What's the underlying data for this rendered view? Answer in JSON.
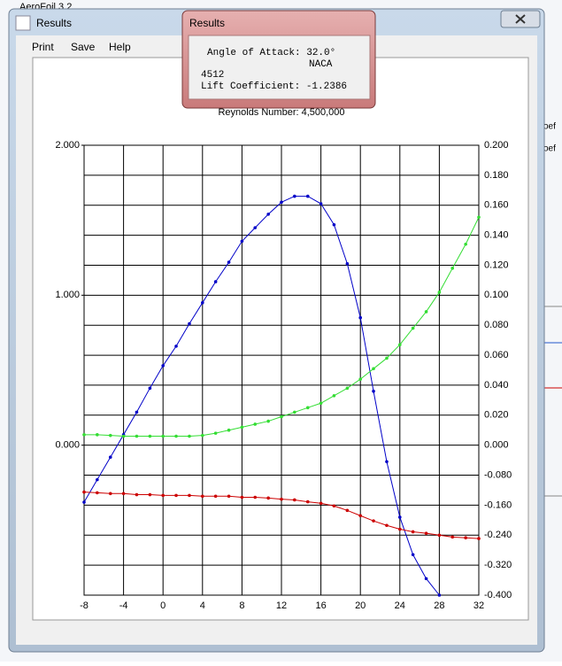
{
  "background_window": {
    "title": "AeroFoil 3.2",
    "fragments": [
      "oef",
      "oef"
    ]
  },
  "window": {
    "title": "Results",
    "menu": [
      "Print",
      "Save",
      "Help"
    ]
  },
  "popup": {
    "title": "Results",
    "lines": [
      "Angle of Attack: 32.0°",
      "NACA",
      "4512",
      "Lift Coefficient: -1.2386"
    ]
  },
  "chart_data": {
    "type": "line",
    "title": "Reynolds Number: 4,500,000",
    "x": [
      -8,
      -6.67,
      -5.33,
      -4,
      -2.67,
      -1.33,
      0,
      1.33,
      2.67,
      4,
      5.33,
      6.67,
      8,
      9.33,
      10.67,
      12,
      13.33,
      14.67,
      16,
      17.33,
      18.67,
      20,
      21.33,
      22.67,
      24,
      25.33,
      26.67,
      28,
      29.33,
      30.67,
      32
    ],
    "series": [
      {
        "color": "#0000c8",
        "values": [
          -0.38,
          -0.23,
          -0.08,
          0.07,
          0.22,
          0.38,
          0.53,
          0.66,
          0.81,
          0.95,
          1.09,
          1.22,
          1.36,
          1.45,
          1.54,
          1.62,
          1.66,
          1.66,
          1.61,
          1.47,
          1.21,
          0.85,
          0.36,
          -0.11,
          -0.48,
          -0.73,
          -0.89,
          -1.0,
          null,
          null,
          null
        ]
      },
      {
        "color": "#33dd33",
        "axis": "y2",
        "values": [
          0.007,
          0.007,
          0.0065,
          0.006,
          0.006,
          0.006,
          0.006,
          0.006,
          0.006,
          0.0065,
          0.008,
          0.01,
          0.012,
          0.014,
          0.016,
          0.019,
          0.022,
          0.025,
          0.028,
          0.033,
          0.038,
          0.044,
          0.051,
          0.058,
          0.067,
          0.078,
          0.089,
          0.102,
          0.118,
          0.134,
          0.152
        ]
      },
      {
        "color": "#cc0000",
        "axis": "y2",
        "values": [
          -0.125,
          -0.127,
          -0.129,
          -0.129,
          -0.132,
          -0.132,
          -0.134,
          -0.134,
          -0.134,
          -0.136,
          -0.136,
          -0.136,
          -0.139,
          -0.139,
          -0.141,
          -0.144,
          -0.146,
          -0.151,
          -0.155,
          -0.162,
          -0.174,
          -0.188,
          -0.202,
          -0.214,
          -0.224,
          -0.231,
          -0.235,
          -0.24,
          -0.245,
          -0.247,
          -0.249
        ]
      }
    ],
    "xlim": [
      -8,
      32
    ],
    "xticks": [
      -8,
      -4,
      0,
      4,
      8,
      12,
      16,
      20,
      24,
      28,
      32
    ],
    "ylim": [
      -1,
      2
    ],
    "yticks": [
      {
        "value": 2,
        "label": "2.000"
      },
      {
        "value": 1,
        "label": "1.000"
      },
      {
        "value": 0,
        "label": "0.000"
      }
    ],
    "y2lim": [
      -0.4,
      0.2
    ],
    "y2ticks": [
      {
        "value": 0.2,
        "label": "0.200"
      },
      {
        "value": 0.18,
        "label": "0.180"
      },
      {
        "value": 0.16,
        "label": "0.160"
      },
      {
        "value": 0.14,
        "label": "0.140"
      },
      {
        "value": 0.12,
        "label": "0.120"
      },
      {
        "value": 0.1,
        "label": "0.100"
      },
      {
        "value": 0.08,
        "label": "0.080"
      },
      {
        "value": 0.06,
        "label": "0.060"
      },
      {
        "value": 0.04,
        "label": "0.040"
      },
      {
        "value": 0.02,
        "label": "0.020"
      },
      {
        "value": 0,
        "label": "0.000"
      },
      {
        "value": -0.08,
        "label": "-0.080"
      },
      {
        "value": -0.16,
        "label": "-0.160"
      },
      {
        "value": -0.24,
        "label": "-0.240"
      },
      {
        "value": -0.32,
        "label": "-0.320"
      },
      {
        "value": -0.4,
        "label": "-0.400"
      }
    ],
    "grid": true
  }
}
